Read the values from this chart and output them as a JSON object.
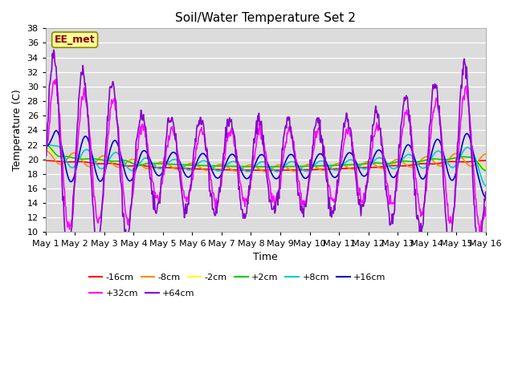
{
  "title": "Soil/Water Temperature Set 2",
  "xlabel": "Time",
  "ylabel": "Temperature (C)",
  "ylim": [
    10,
    38
  ],
  "yticks": [
    10,
    12,
    14,
    16,
    18,
    20,
    22,
    24,
    26,
    28,
    30,
    32,
    34,
    36,
    38
  ],
  "xtick_labels": [
    "May 1",
    "May 2",
    "May 3",
    "May 4",
    "May 5",
    "May 6",
    "May 7",
    "May 8",
    "May 9",
    "May 10",
    "May 11",
    "May 12",
    "May 13",
    "May 14",
    "May 15",
    "May 16"
  ],
  "bg_color": "#dcdcdc",
  "annotation_text": "EE_met",
  "annotation_color": "#8b0000",
  "annotation_bg": "#ffff99",
  "series_order": [
    "-16cm",
    "-8cm",
    "-2cm",
    "+2cm",
    "+8cm",
    "+16cm",
    "+32cm",
    "+64cm"
  ],
  "series_colors": {
    "-16cm": "#ff0000",
    "-8cm": "#ff8800",
    "-2cm": "#ffff00",
    "+2cm": "#00cc00",
    "+8cm": "#00cccc",
    "+16cm": "#0000cc",
    "+32cm": "#ff00ff",
    "+64cm": "#8800cc"
  },
  "series_lw": 1.2,
  "legend_ncol_row1": 6,
  "legend_ncol_row2": 2
}
